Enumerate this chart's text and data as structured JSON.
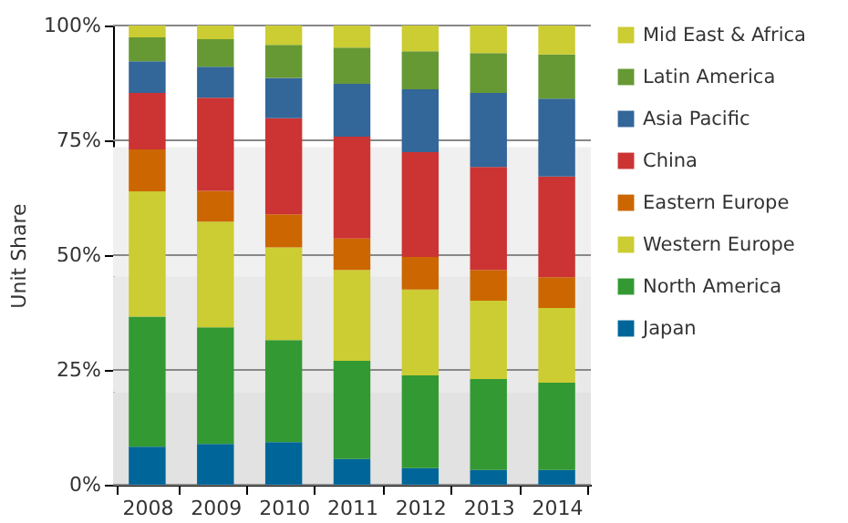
{
  "chart_data": {
    "type": "bar",
    "stacked": true,
    "ylabel": "Unit Share",
    "categories": [
      "2008",
      "2009",
      "2010",
      "2011",
      "2012",
      "2013",
      "2014"
    ],
    "series": [
      {
        "name": "Japan",
        "color": "#006699",
        "values": [
          8.3,
          8.9,
          9.3,
          5.6,
          3.6,
          3.2,
          3.2
        ]
      },
      {
        "name": "North America",
        "color": "#339933",
        "values": [
          28.3,
          25.4,
          22.2,
          21.4,
          20.2,
          19.8,
          19.0
        ]
      },
      {
        "name": "Western Europe",
        "color": "#cccc33",
        "values": [
          27.3,
          23.0,
          20.2,
          19.8,
          18.7,
          17.1,
          16.3
        ]
      },
      {
        "name": "Eastern Europe",
        "color": "#cc6600",
        "values": [
          9.1,
          6.7,
          7.2,
          6.8,
          7.1,
          6.7,
          6.7
        ]
      },
      {
        "name": "China",
        "color": "#cc3333",
        "values": [
          12.3,
          20.3,
          20.9,
          22.2,
          22.8,
          22.4,
          21.9
        ]
      },
      {
        "name": "Asia Pacific",
        "color": "#336699",
        "values": [
          6.9,
          6.7,
          8.8,
          11.5,
          13.7,
          16.1,
          17.0
        ]
      },
      {
        "name": "Latin America",
        "color": "#669933",
        "values": [
          5.2,
          6.0,
          7.2,
          7.9,
          8.3,
          8.7,
          9.6
        ]
      },
      {
        "name": "Mid East & Africa",
        "color": "#cccc33",
        "values": [
          2.6,
          3.0,
          4.2,
          4.8,
          5.6,
          6.0,
          6.3
        ]
      }
    ],
    "ylim": [
      0,
      100
    ],
    "yticks": [
      {
        "value": 0,
        "label": "0%"
      },
      {
        "value": 25,
        "label": "25%"
      },
      {
        "value": 50,
        "label": "50%"
      },
      {
        "value": 75,
        "label": "75%"
      },
      {
        "value": 100,
        "label": "100%"
      }
    ],
    "bands": [
      {
        "axis": "y",
        "from": 0,
        "to": 20.2,
        "color": "#e2e2e2"
      },
      {
        "axis": "y",
        "from": 20.2,
        "to": 45.4,
        "color": "#e9e9e9"
      },
      {
        "axis": "y",
        "from": 45.4,
        "to": 73.5,
        "color": "#f0f0f0"
      }
    ],
    "grid": "y",
    "legend": "right"
  }
}
